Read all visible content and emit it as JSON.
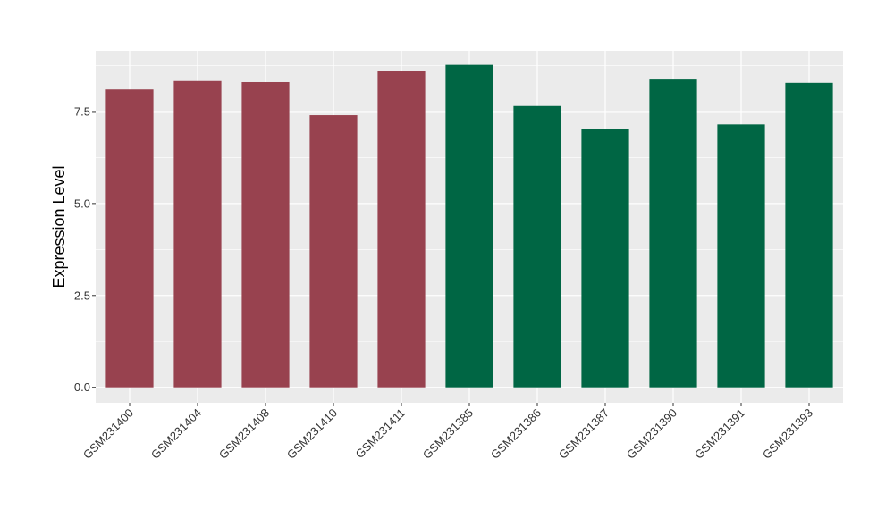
{
  "chart_data": {
    "type": "bar",
    "title": "",
    "xlabel": "",
    "ylabel": "Expression Level",
    "categories": [
      "GSM231400",
      "GSM231404",
      "GSM231408",
      "GSM231410",
      "GSM231411",
      "GSM231385",
      "GSM231386",
      "GSM231387",
      "GSM231390",
      "GSM231391",
      "GSM231393"
    ],
    "values": [
      8.1,
      8.33,
      8.3,
      7.4,
      8.6,
      8.77,
      7.65,
      7.02,
      8.37,
      7.15,
      8.28
    ],
    "bar_colors": [
      "#98424f",
      "#98424f",
      "#98424f",
      "#98424f",
      "#98424f",
      "#006644",
      "#006644",
      "#006644",
      "#006644",
      "#006644",
      "#006644"
    ],
    "ylim": [
      -0.42,
      9.15
    ],
    "yticks": [
      0.0,
      2.5,
      5.0,
      7.5
    ],
    "ytick_labels": [
      "0.0",
      "2.5",
      "5.0",
      "7.5"
    ],
    "grid": true,
    "legend": "none",
    "panel_background": "#ebebeb",
    "grid_color": "#ffffff"
  }
}
